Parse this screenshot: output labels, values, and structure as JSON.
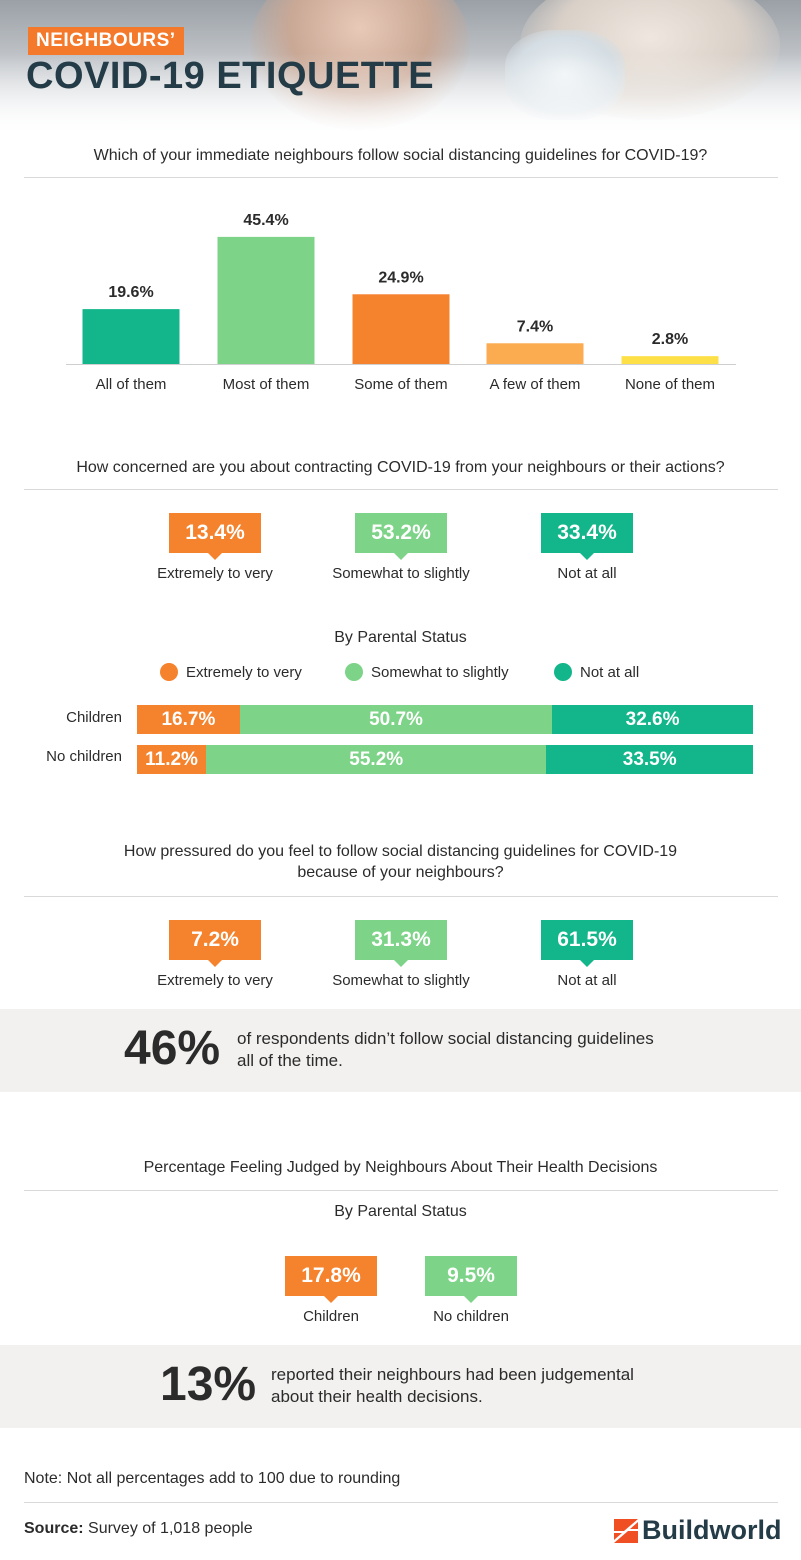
{
  "header": {
    "tag": "NEIGHBOURS’",
    "title": "COVID-19 ETIQUETTE"
  },
  "colors": {
    "extreme": "#f5822d",
    "somewhat": "#7dd387",
    "none": "#12b68a",
    "light_orange": "#fbab50",
    "yellow": "#fde047"
  },
  "chart_data": [
    {
      "type": "bar",
      "title": "Which of your immediate neighbours follow social distancing guidelines for COVID-19?",
      "categories": [
        "All of them",
        "Most of them",
        "Some of them",
        "A few of them",
        "None of them"
      ],
      "values": [
        19.6,
        45.4,
        24.9,
        7.4,
        2.8
      ],
      "value_labels": [
        "19.6%",
        "45.4%",
        "24.9%",
        "7.4%",
        "2.8%"
      ],
      "colors": [
        "#12b68a",
        "#7dd387",
        "#f5822d",
        "#fbab50",
        "#fde047"
      ],
      "ylim": [
        0,
        50
      ]
    },
    {
      "type": "bar",
      "stacked": true,
      "orientation": "horizontal",
      "title": "By Parental Status",
      "categories": [
        "Children",
        "No children"
      ],
      "series": [
        {
          "name": "Extremely to very",
          "values": [
            16.7,
            11.2
          ],
          "labels": [
            "16.7%",
            "11.2%"
          ]
        },
        {
          "name": "Somewhat to slightly",
          "values": [
            50.7,
            55.2
          ],
          "labels": [
            "50.7%",
            "55.2%"
          ]
        },
        {
          "name": "Not at all",
          "values": [
            32.6,
            33.5
          ],
          "labels": [
            "32.6%",
            "33.5%"
          ]
        }
      ],
      "legend": [
        "Extremely to very",
        "Somewhat to slightly",
        "Not at all"
      ]
    }
  ],
  "concern": {
    "question": "How concerned are you about contracting COVID-19 from your neighbours or their actions?",
    "stats": [
      {
        "value": "13.4%",
        "label": "Extremely to very"
      },
      {
        "value": "53.2%",
        "label": "Somewhat to slightly"
      },
      {
        "value": "33.4%",
        "label": "Not at all"
      }
    ],
    "by_parental_title": "By Parental Status"
  },
  "pressure": {
    "question_line1": "How pressured do you feel to follow social distancing guidelines for COVID-19",
    "question_line2": "because of your neighbours?",
    "stats": [
      {
        "value": "7.2%",
        "label": "Extremely to very"
      },
      {
        "value": "31.3%",
        "label": "Somewhat to slightly"
      },
      {
        "value": "61.5%",
        "label": "Not at all"
      }
    ]
  },
  "callout1": {
    "big": "46%",
    "line1": "of respondents didn’t follow social distancing guidelines",
    "line2": "all of the time."
  },
  "judged": {
    "title": "Percentage Feeling Judged by Neighbours About Their Health Decisions",
    "subtitle": "By Parental Status",
    "stats": [
      {
        "value": "17.8%",
        "label": "Children"
      },
      {
        "value": "9.5%",
        "label": "No children"
      }
    ]
  },
  "callout2": {
    "big": "13%",
    "line1": "reported their neighbours had been judgemental",
    "line2": "about their health decisions."
  },
  "footer": {
    "note": "Note: Not all percentages add to 100 due to rounding",
    "source_label": "Source:",
    "source_text": " Survey of 1,018 people",
    "brand": "Buildworld"
  }
}
